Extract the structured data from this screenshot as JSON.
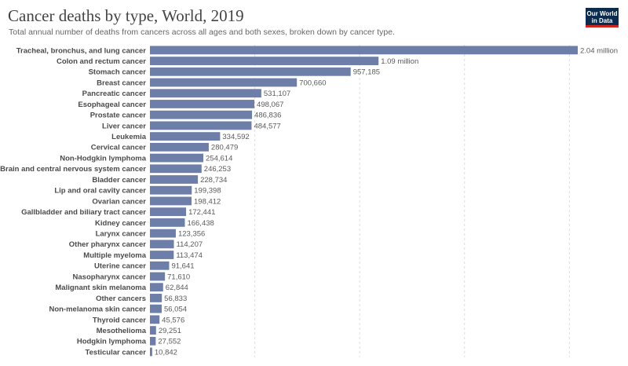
{
  "header": {
    "title": "Cancer deaths by type, World, 2019",
    "subtitle": "Total annual number of deaths from cancers across all ages and both sexes, broken down by cancer type.",
    "logo_line1": "Our World",
    "logo_line2": "in Data"
  },
  "colors": {
    "bar": "#6d7fa8",
    "grid": "#dddddd",
    "logo_bg": "#0b2b4f",
    "logo_accent": "#ce261e"
  },
  "chart_data": {
    "type": "bar",
    "orientation": "horizontal",
    "title": "Cancer deaths by type, World, 2019",
    "subtitle": "Total annual number of deaths from cancers across all ages and both sexes, broken down by cancer type.",
    "xlim": [
      0,
      2040000
    ],
    "gridlines": [
      0,
      500000,
      1000000,
      1500000,
      2000000
    ],
    "categories": [
      "Tracheal, bronchus, and lung cancer",
      "Colon and rectum cancer",
      "Stomach cancer",
      "Breast cancer",
      "Pancreatic cancer",
      "Esophageal cancer",
      "Prostate cancer",
      "Liver cancer",
      "Leukemia",
      "Cervical cancer",
      "Non-Hodgkin lymphoma",
      "Brain and central nervous system cancer",
      "Bladder cancer",
      "Lip and oral cavity cancer",
      "Ovarian cancer",
      "Gallbladder and biliary tract cancer",
      "Kidney cancer",
      "Larynx cancer",
      "Other pharynx cancer",
      "Multiple myeloma",
      "Uterine cancer",
      "Nasopharynx cancer",
      "Malignant skin melanoma",
      "Other cancers",
      "Non-melanoma skin cancer",
      "Thyroid cancer",
      "Mesothelioma",
      "Hodgkin lymphoma",
      "Testicular cancer"
    ],
    "values": [
      2040000,
      1090000,
      957185,
      700660,
      531107,
      498067,
      486836,
      484577,
      334592,
      280479,
      254614,
      246253,
      228734,
      199398,
      198412,
      172441,
      166438,
      123356,
      114207,
      113474,
      91641,
      71610,
      62844,
      56833,
      56054,
      45576,
      29251,
      27552,
      10842
    ],
    "value_labels": [
      "2.04 million",
      "1.09 million",
      "957,185",
      "700,660",
      "531,107",
      "498,067",
      "486,836",
      "484,577",
      "334,592",
      "280,479",
      "254,614",
      "246,253",
      "228,734",
      "199,398",
      "198,412",
      "172,441",
      "166,438",
      "123,356",
      "114,207",
      "113,474",
      "91,641",
      "71,610",
      "62,844",
      "56,833",
      "56,054",
      "45,576",
      "29,251",
      "27,552",
      "10,842"
    ]
  }
}
